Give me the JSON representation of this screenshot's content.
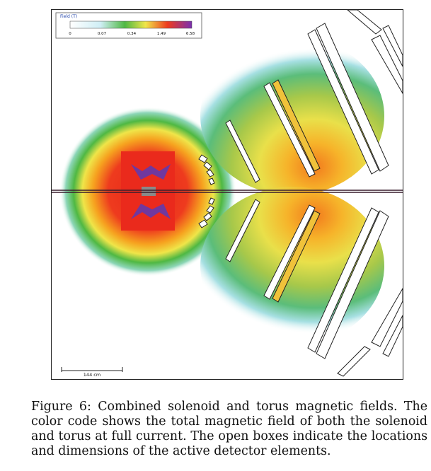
{
  "figure": {
    "legend": {
      "title": "Field (T)",
      "ticks": [
        "0",
        "0.07",
        "0.34",
        "1.49",
        "6.58"
      ],
      "colors": [
        "#ffffff",
        "#cfeef5",
        "#4fb843",
        "#f0e64a",
        "#ee3b1e",
        "#7a2fb0"
      ]
    },
    "scale_bar": {
      "label": "144 cm"
    }
  },
  "caption": {
    "prefix": "Figure 6:",
    "text": "Combined solenoid and torus magnetic fields. The color code shows the total magnetic field of both the solenoid and torus at full current. The open boxes indicate the locations and dimensions of the active detector elements."
  }
}
